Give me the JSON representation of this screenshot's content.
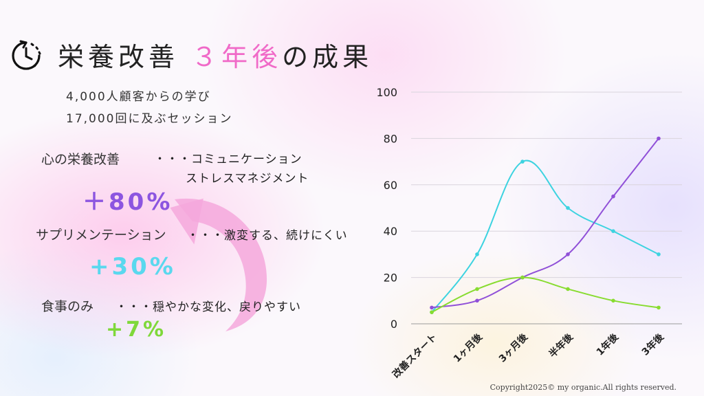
{
  "header": {
    "title_prefix": "栄養改善",
    "title_highlight": "３年後",
    "title_suffix": "の成果",
    "icon": "timer-clock-icon"
  },
  "intro": {
    "line1": "4,000人顧客からの学び",
    "line2": "17,000回に及ぶセッション"
  },
  "results": [
    {
      "label": "心の栄養改善",
      "desc": "・・・コミュニケーション",
      "desc2": "ストレスマネジメント",
      "pct": "＋80%",
      "color": "#8c55e0"
    },
    {
      "label": "サプリメンテーション",
      "desc": "・・・激変する、続けにくい",
      "pct": "+30%",
      "color": "#5ad8ee"
    },
    {
      "label": "食事のみ",
      "desc": "・・・穏やかな変化、戻りやすい",
      "pct": "+7%",
      "color": "#7fd83a"
    }
  ],
  "arrow": {
    "color": "#f4a8dc"
  },
  "chart_data": {
    "type": "line",
    "categories": [
      "改善スタート",
      "1ヶ月後",
      "3ヶ月後",
      "半年後",
      "1年後",
      "3年後"
    ],
    "ylim": [
      0,
      100
    ],
    "yticks": [
      "0",
      "20",
      "40",
      "60",
      "80",
      "100"
    ],
    "grid": true,
    "smooth": true,
    "series": [
      {
        "values": [
          5,
          30,
          70,
          50,
          40,
          30
        ],
        "color": "#3dd3e0"
      },
      {
        "values": [
          7,
          10,
          20,
          30,
          55,
          80
        ],
        "color": "#9050d8"
      },
      {
        "values": [
          5,
          15,
          20,
          15,
          10,
          7
        ],
        "color": "#88dc30"
      }
    ]
  },
  "footer": {
    "copyright": "Copyright2025© my organic.All rights reserved."
  }
}
